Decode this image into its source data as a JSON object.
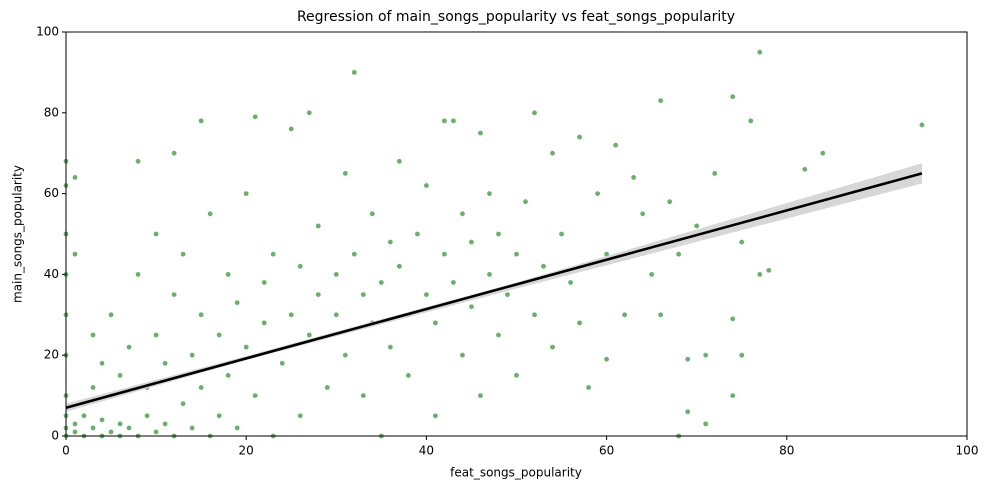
{
  "chart_data": {
    "type": "scatter",
    "title": "Regression of main_songs_popularity vs feat_songs_popularity",
    "x_label": "feat_songs_popularity",
    "y_label": "main_songs_popularity",
    "xlim": [
      0,
      100
    ],
    "ylim": [
      0,
      100
    ],
    "xticks": [
      0,
      20,
      40,
      60,
      80,
      100
    ],
    "yticks": [
      0,
      20,
      40,
      60,
      80,
      100
    ],
    "series": [
      {
        "color": "#008000",
        "x": [
          0,
          0,
          1,
          0,
          0,
          1,
          0,
          0,
          0,
          0,
          0,
          0,
          1,
          1,
          2,
          2,
          2,
          3,
          3,
          3,
          4,
          4,
          4,
          5,
          5,
          5,
          6,
          6,
          6,
          7,
          7,
          8,
          8,
          8,
          9,
          9,
          10,
          10,
          10,
          11,
          11,
          12,
          12,
          12,
          13,
          13,
          14,
          14,
          15,
          15,
          15,
          16,
          16,
          17,
          17,
          18,
          18,
          19,
          19,
          20,
          20,
          21,
          21,
          22,
          22,
          23,
          23,
          24,
          25,
          25,
          26,
          26,
          27,
          27,
          28,
          28,
          29,
          30,
          30,
          31,
          31,
          32,
          32,
          33,
          33,
          34,
          34,
          35,
          35,
          36,
          36,
          37,
          37,
          38,
          38,
          39,
          40,
          40,
          41,
          41,
          42,
          42,
          43,
          43,
          44,
          44,
          45,
          45,
          46,
          46,
          47,
          47,
          48,
          48,
          49,
          50,
          50,
          51,
          52,
          52,
          53,
          54,
          54,
          55,
          56,
          57,
          57,
          58,
          59,
          60,
          60,
          61,
          62,
          63,
          64,
          65,
          66,
          66,
          67,
          68,
          68,
          69,
          69,
          70,
          71,
          71,
          72,
          74,
          74,
          74,
          75,
          75,
          76,
          77,
          77,
          78,
          80,
          82,
          84,
          95
        ],
        "y": [
          68,
          62,
          64,
          50,
          40,
          45,
          30,
          20,
          10,
          5,
          2,
          0,
          1,
          3,
          0,
          5,
          8,
          2,
          12,
          25,
          0,
          4,
          18,
          1,
          30,
          10,
          0,
          3,
          15,
          2,
          22,
          68,
          0,
          40,
          5,
          12,
          1,
          25,
          50,
          3,
          18,
          70,
          0,
          35,
          8,
          45,
          2,
          20,
          78,
          12,
          30,
          0,
          55,
          5,
          25,
          40,
          15,
          2,
          33,
          22,
          60,
          79,
          10,
          38,
          28,
          0,
          45,
          18,
          76,
          30,
          5,
          42,
          80,
          25,
          35,
          52,
          12,
          40,
          30,
          20,
          65,
          90,
          45,
          35,
          10,
          28,
          55,
          38,
          0,
          48,
          22,
          42,
          68,
          30,
          15,
          50,
          35,
          62,
          28,
          5,
          78,
          45,
          38,
          78,
          55,
          20,
          32,
          48,
          75,
          10,
          40,
          60,
          25,
          50,
          35,
          45,
          15,
          58,
          80,
          30,
          42,
          70,
          22,
          50,
          38,
          74,
          28,
          12,
          60,
          19,
          45,
          72,
          30,
          64,
          55,
          40,
          83,
          30,
          58,
          0,
          45,
          6,
          19,
          52,
          3,
          20,
          65,
          84,
          10,
          29,
          20,
          48,
          78,
          95,
          40,
          41,
          56,
          66,
          70,
          77
        ]
      }
    ],
    "regression": {
      "color": "#000000",
      "x": [
        0,
        95
      ],
      "y": [
        7,
        65
      ]
    },
    "confidence_band": {
      "color": "#d3d3d3",
      "x": [
        0,
        20,
        50,
        95
      ],
      "lower": [
        6,
        18.8,
        36.5,
        62.5
      ],
      "upper": [
        8,
        19.8,
        38,
        67.5
      ]
    }
  }
}
